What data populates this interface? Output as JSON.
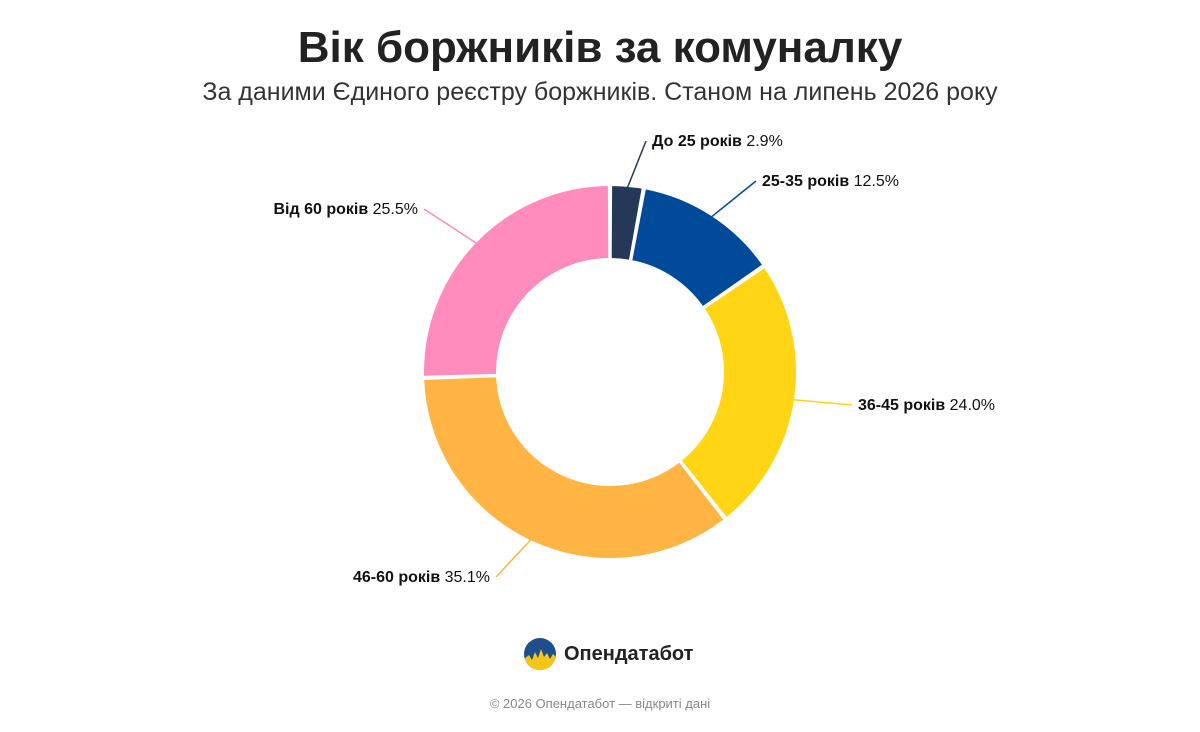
{
  "header": {
    "title": "Вік боржників за комуналку",
    "subtitle": "За даними Єдиного реєстру боржників. Станом на липень 2026 року"
  },
  "chart_data": {
    "type": "pie",
    "style": "donut",
    "title": "Вік боржників за комуналку",
    "subtitle": "За даними Єдиного реєстру боржників. Станом на липень 2026 року",
    "unit": "%",
    "categories": [
      "До 25 років",
      "25-35 років",
      "36-45 років",
      "46-60 років",
      "Від 60 років"
    ],
    "values": [
      2.9,
      12.5,
      24.0,
      35.1,
      25.5
    ],
    "value_labels": [
      "2.9%",
      "12.5%",
      "24.0%",
      "35.1%",
      "25.5%"
    ],
    "colors": [
      "#253858",
      "#004a99",
      "#ffd516",
      "#ffb443",
      "#ff8cbd"
    ],
    "legend": "none"
  },
  "brand": {
    "name": "Опендатабот",
    "logo_icon": "opendatabot-logo-icon"
  },
  "footer": {
    "text": "© 2026 Опендатабот — відкриті дані"
  }
}
